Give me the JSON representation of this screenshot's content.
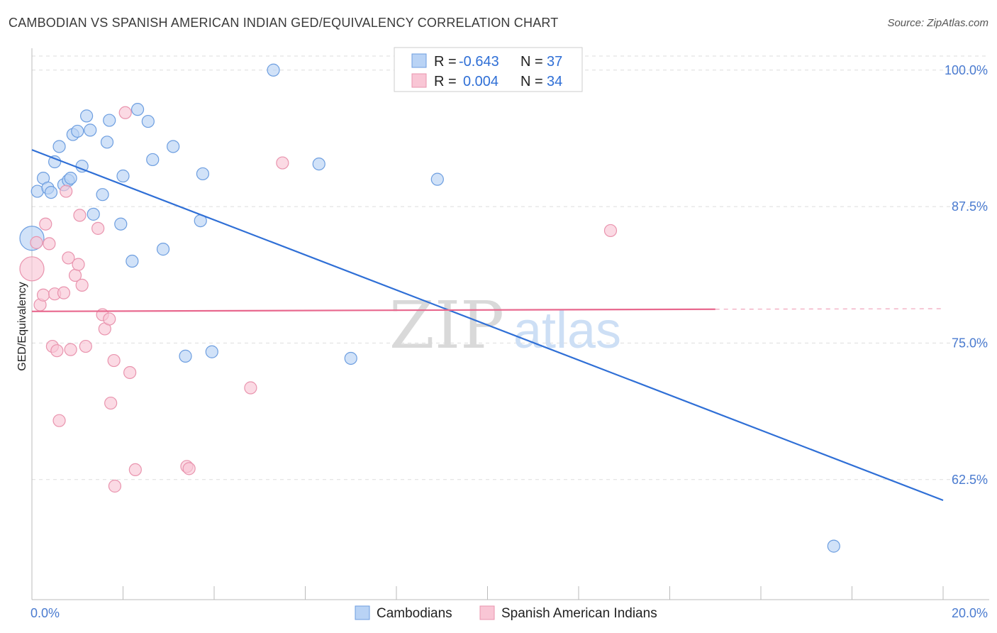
{
  "title": "CAMBODIAN VS SPANISH AMERICAN INDIAN GED/EQUIVALENCY CORRELATION CHART",
  "source": "Source: ZipAtlas.com",
  "watermark": {
    "zip": "ZIP",
    "atlas": "atlas"
  },
  "colors": {
    "blue_fill": "#b9d3f5",
    "blue_stroke": "#6d9ee0",
    "blue_line": "#2f6fd6",
    "pink_fill": "#f9c6d5",
    "pink_stroke": "#e994ae",
    "pink_line": "#e8688e",
    "axis_text": "#4a7bd0",
    "grid": "#dddddd"
  },
  "chart_data": {
    "type": "scatter",
    "title": "CAMBODIAN VS SPANISH AMERICAN INDIAN GED/EQUIVALENCY CORRELATION CHART",
    "xlabel": "",
    "ylabel": "GED/Equivalency",
    "xlim": [
      0,
      20
    ],
    "ylim": [
      51.5,
      102
    ],
    "x_tick_labels": [
      "0.0%",
      "20.0%"
    ],
    "y_ticks": [
      62.5,
      75.0,
      87.5,
      100.0
    ],
    "y_tick_labels": [
      "62.5%",
      "75.0%",
      "87.5%",
      "100.0%"
    ],
    "legend": [
      {
        "swatch": "blue",
        "r_label": "R =",
        "r_value": "-0.643",
        "n_label": "N =",
        "n_value": "37"
      },
      {
        "swatch": "pink",
        "r_label": "R =",
        "r_value": "0.004",
        "n_label": "N =",
        "n_value": "34"
      }
    ],
    "series": [
      {
        "name": "Cambodians",
        "color": "blue",
        "trend": {
          "x": [
            0,
            20
          ],
          "y": [
            92.7,
            60.6
          ],
          "dashed_from": null
        },
        "points": [
          {
            "x": 0.0,
            "y": 84.6,
            "s": 2
          },
          {
            "x": 0.12,
            "y": 88.9,
            "s": 1
          },
          {
            "x": 0.25,
            "y": 90.1,
            "s": 1
          },
          {
            "x": 0.35,
            "y": 89.2,
            "s": 1
          },
          {
            "x": 0.42,
            "y": 88.8,
            "s": 1
          },
          {
            "x": 0.5,
            "y": 91.6,
            "s": 1
          },
          {
            "x": 0.6,
            "y": 93.0,
            "s": 1
          },
          {
            "x": 0.7,
            "y": 89.5,
            "s": 1
          },
          {
            "x": 0.8,
            "y": 89.9,
            "s": 1
          },
          {
            "x": 0.85,
            "y": 90.1,
            "s": 1
          },
          {
            "x": 0.9,
            "y": 94.1,
            "s": 1
          },
          {
            "x": 1.0,
            "y": 94.4,
            "s": 1
          },
          {
            "x": 1.1,
            "y": 91.2,
            "s": 1
          },
          {
            "x": 1.2,
            "y": 95.8,
            "s": 1
          },
          {
            "x": 1.28,
            "y": 94.5,
            "s": 1
          },
          {
            "x": 1.35,
            "y": 86.8,
            "s": 1
          },
          {
            "x": 1.55,
            "y": 88.6,
            "s": 1
          },
          {
            "x": 1.65,
            "y": 93.4,
            "s": 1
          },
          {
            "x": 1.7,
            "y": 95.4,
            "s": 1
          },
          {
            "x": 1.95,
            "y": 85.9,
            "s": 1
          },
          {
            "x": 2.0,
            "y": 90.3,
            "s": 1
          },
          {
            "x": 2.2,
            "y": 82.5,
            "s": 1
          },
          {
            "x": 2.32,
            "y": 96.4,
            "s": 1
          },
          {
            "x": 2.55,
            "y": 95.3,
            "s": 1
          },
          {
            "x": 2.65,
            "y": 91.8,
            "s": 1
          },
          {
            "x": 2.88,
            "y": 83.6,
            "s": 1
          },
          {
            "x": 3.1,
            "y": 93.0,
            "s": 1
          },
          {
            "x": 3.37,
            "y": 73.8,
            "s": 1
          },
          {
            "x": 3.7,
            "y": 86.2,
            "s": 1
          },
          {
            "x": 3.75,
            "y": 90.5,
            "s": 1
          },
          {
            "x": 3.95,
            "y": 74.2,
            "s": 1
          },
          {
            "x": 5.3,
            "y": 100.0,
            "s": 1
          },
          {
            "x": 6.3,
            "y": 91.4,
            "s": 1
          },
          {
            "x": 7.0,
            "y": 73.6,
            "s": 1
          },
          {
            "x": 8.9,
            "y": 90.0,
            "s": 1
          },
          {
            "x": 17.6,
            "y": 56.4,
            "s": 1
          }
        ]
      },
      {
        "name": "Spanish American Indians",
        "color": "pink",
        "trend": {
          "x": [
            0,
            15
          ],
          "y": [
            77.9,
            78.1
          ],
          "dashed_to": 20,
          "dashed_y": 78.15
        },
        "points": [
          {
            "x": 0.0,
            "y": 81.8,
            "s": 2
          },
          {
            "x": 0.1,
            "y": 84.2,
            "s": 1
          },
          {
            "x": 0.18,
            "y": 78.5,
            "s": 1
          },
          {
            "x": 0.25,
            "y": 79.4,
            "s": 1
          },
          {
            "x": 0.3,
            "y": 85.9,
            "s": 1
          },
          {
            "x": 0.38,
            "y": 84.1,
            "s": 1
          },
          {
            "x": 0.45,
            "y": 74.7,
            "s": 1
          },
          {
            "x": 0.5,
            "y": 79.5,
            "s": 1
          },
          {
            "x": 0.55,
            "y": 74.3,
            "s": 1
          },
          {
            "x": 0.6,
            "y": 67.9,
            "s": 1
          },
          {
            "x": 0.7,
            "y": 79.6,
            "s": 1
          },
          {
            "x": 0.75,
            "y": 88.9,
            "s": 1
          },
          {
            "x": 0.8,
            "y": 82.8,
            "s": 1
          },
          {
            "x": 0.85,
            "y": 74.4,
            "s": 1
          },
          {
            "x": 0.95,
            "y": 81.2,
            "s": 1
          },
          {
            "x": 1.02,
            "y": 82.2,
            "s": 1
          },
          {
            "x": 1.05,
            "y": 86.7,
            "s": 1
          },
          {
            "x": 1.1,
            "y": 80.3,
            "s": 1
          },
          {
            "x": 1.18,
            "y": 74.7,
            "s": 1
          },
          {
            "x": 1.45,
            "y": 85.5,
            "s": 1
          },
          {
            "x": 1.55,
            "y": 77.6,
            "s": 1
          },
          {
            "x": 1.6,
            "y": 76.3,
            "s": 1
          },
          {
            "x": 1.7,
            "y": 77.2,
            "s": 1
          },
          {
            "x": 1.73,
            "y": 69.5,
            "s": 1
          },
          {
            "x": 1.8,
            "y": 73.4,
            "s": 1
          },
          {
            "x": 1.82,
            "y": 61.9,
            "s": 1
          },
          {
            "x": 2.05,
            "y": 96.1,
            "s": 1
          },
          {
            "x": 2.15,
            "y": 72.3,
            "s": 1
          },
          {
            "x": 2.27,
            "y": 63.4,
            "s": 1
          },
          {
            "x": 3.4,
            "y": 63.7,
            "s": 1
          },
          {
            "x": 3.45,
            "y": 63.5,
            "s": 1
          },
          {
            "x": 4.8,
            "y": 70.9,
            "s": 1
          },
          {
            "x": 5.5,
            "y": 91.5,
            "s": 1
          },
          {
            "x": 12.7,
            "y": 85.3,
            "s": 1
          }
        ]
      }
    ]
  }
}
